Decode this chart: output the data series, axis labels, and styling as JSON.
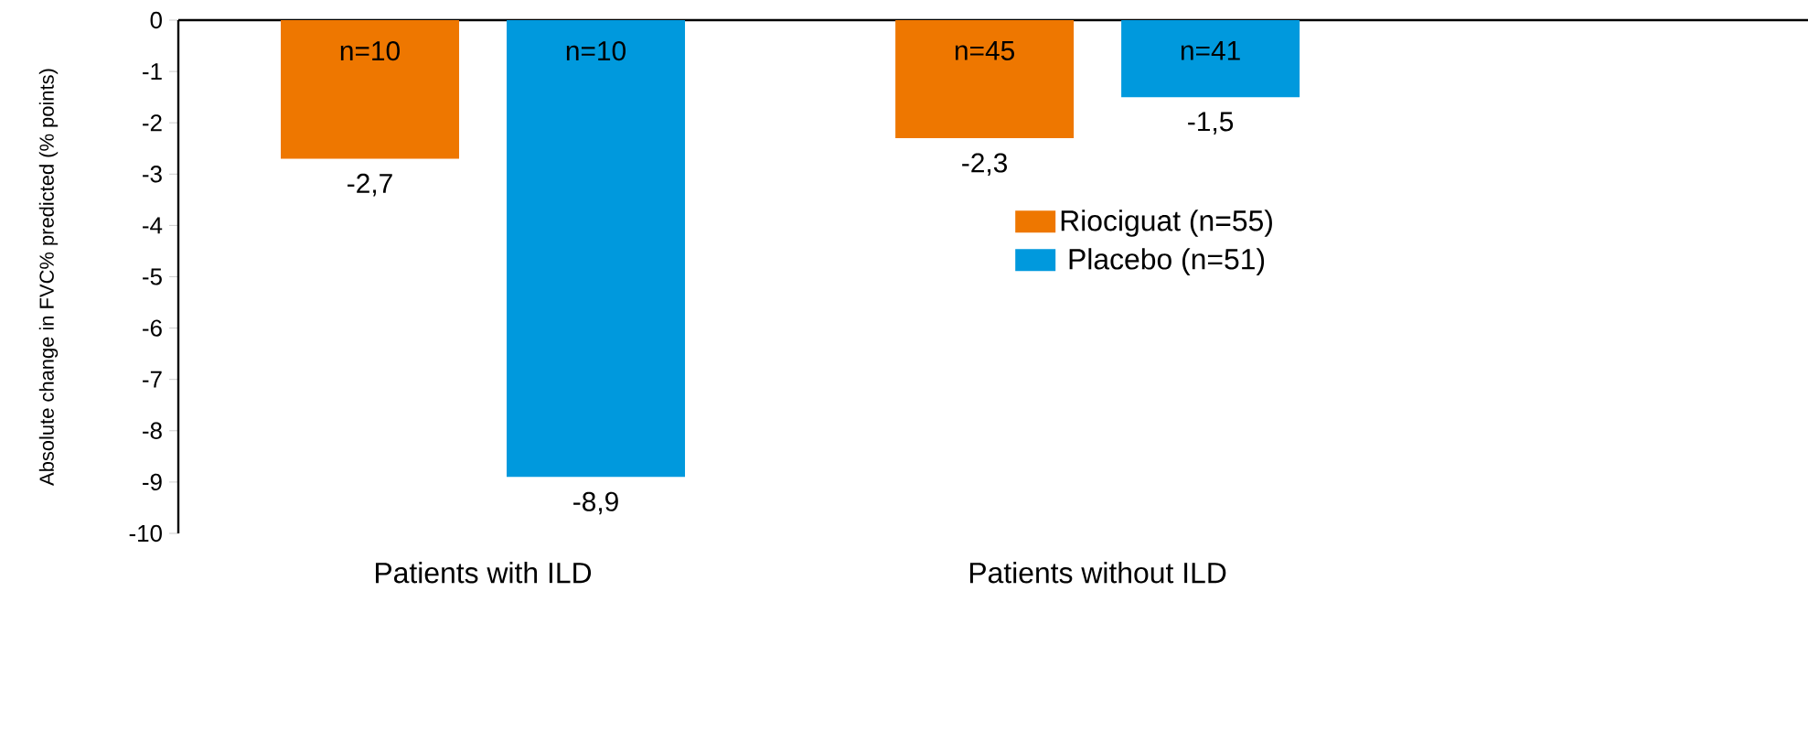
{
  "chart_data": {
    "type": "bar",
    "ylabel": "Absolute change in FVC% predicted (% points)",
    "categories": [
      "Patients with ILD",
      "Patients without ILD"
    ],
    "series": [
      {
        "name": "Riociguat (n=55)",
        "color": "#ee7700",
        "values": [
          -2.7,
          -2.3
        ],
        "value_labels": [
          "-2,7",
          "-2,3"
        ]
      },
      {
        "name": "Placebo (n=51)",
        "color": "#0099dd",
        "values": [
          -8.9,
          -1.5
        ],
        "value_labels": [
          "-8,9",
          "-1,5"
        ]
      }
    ],
    "annotations": [
      "n=10",
      "n=10",
      "n=45",
      "n=41"
    ],
    "ylim": [
      -10,
      0
    ],
    "yticks": [
      -10,
      -9,
      -8,
      -7,
      -6,
      -5,
      -4,
      -3,
      -2,
      -1,
      0
    ],
    "grid": false,
    "legend": "right"
  }
}
